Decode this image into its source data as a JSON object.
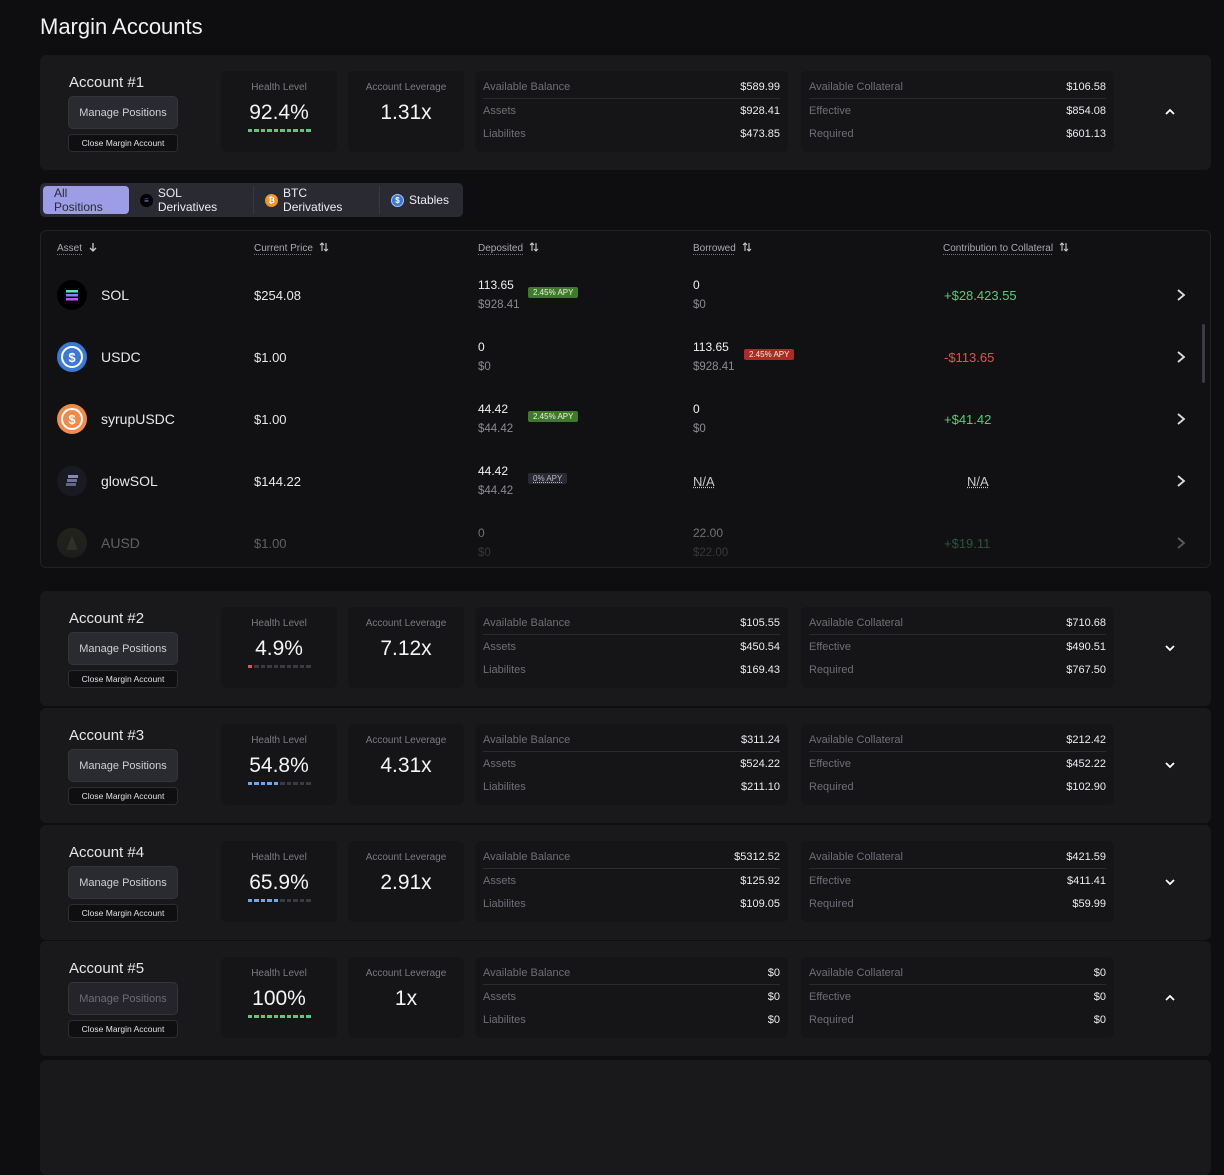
{
  "page_title": "Margin Accounts",
  "labels": {
    "health": "Health Level",
    "leverage": "Account Leverage",
    "available_balance": "Available Balance",
    "assets": "Assets",
    "liabilities": "Liabilites",
    "available_collateral": "Available Collateral",
    "effective": "Effective",
    "required": "Required",
    "manage": "Manage Positions",
    "close": "Close Margin Account"
  },
  "colors": {
    "green": "#5cc87a",
    "red": "#e0544a",
    "blue": "#6aa8e8",
    "accent": "#9d9ce6"
  },
  "accounts": [
    {
      "name": "Account #1",
      "health": "92.4%",
      "health_segments": 10,
      "health_color": "green",
      "leverage": "1.31x",
      "available_balance": "$589.99",
      "assets": "$928.41",
      "liabilities": "$473.85",
      "available_collateral": "$106.58",
      "effective": "$854.08",
      "required": "$601.13",
      "expanded": true,
      "manage_disabled": false
    },
    {
      "name": "Account #2",
      "health": "4.9%",
      "health_segments": 1,
      "health_color": "red",
      "leverage": "7.12x",
      "available_balance": "$105.55",
      "assets": "$450.54",
      "liabilities": "$169.43",
      "available_collateral": "$710.68",
      "effective": "$490.51",
      "required": "$767.50",
      "expanded": false,
      "manage_disabled": false
    },
    {
      "name": "Account #3",
      "health": "54.8%",
      "health_segments": 5,
      "health_color": "blue",
      "leverage": "4.31x",
      "available_balance": "$311.24",
      "assets": "$524.22",
      "liabilities": "$211.10",
      "available_collateral": "$212.42",
      "effective": "$452.22",
      "required": "$102.90",
      "expanded": false,
      "manage_disabled": false
    },
    {
      "name": "Account #4",
      "health": "65.9%",
      "health_segments": 5,
      "health_color": "blue",
      "leverage": "2.91x",
      "available_balance": "$5312.52",
      "assets": "$125.92",
      "liabilities": "$109.05",
      "available_collateral": "$421.59",
      "effective": "$411.41",
      "required": "$59.99",
      "expanded": false,
      "manage_disabled": false
    },
    {
      "name": "Account #5",
      "health": "100%",
      "health_segments": 10,
      "health_color": "green",
      "leverage": "1x",
      "available_balance": "$0",
      "assets": "$0",
      "liabilities": "$0",
      "available_collateral": "$0",
      "effective": "$0",
      "required": "$0",
      "expanded": true,
      "manage_disabled": true
    }
  ],
  "tabs": [
    {
      "label": "All Positions",
      "active": true,
      "icon": ""
    },
    {
      "label": "SOL Derivatives",
      "active": false,
      "icon": "sol-icon"
    },
    {
      "label": "BTC Derivatives",
      "active": false,
      "icon": "btc-icon"
    },
    {
      "label": "Stables",
      "active": false,
      "icon": "usdc-icon"
    }
  ],
  "table": {
    "headers": [
      "Asset",
      "Current Price",
      "Deposited",
      "Borrowed",
      "Contribution to Collateral"
    ],
    "rows": [
      {
        "asset": "SOL",
        "icon": "sol-icon",
        "price": "$254.08",
        "deposited": "113.65",
        "deposited_usd": "$928.41",
        "deposited_apy": "2.45% APY",
        "deposited_apy_type": "green",
        "borrowed": "0",
        "borrowed_usd": "$0",
        "borrowed_apy": "",
        "contribution": "+$28.423.55",
        "contribution_type": "pos"
      },
      {
        "asset": "USDC",
        "icon": "usdc-icon",
        "price": "$1.00",
        "deposited": "0",
        "deposited_usd": "$0",
        "deposited_apy": "",
        "borrowed": "113.65",
        "borrowed_usd": "$928.41",
        "borrowed_apy": "2.45% APY",
        "contribution": "-$113.65",
        "contribution_type": "neg"
      },
      {
        "asset": "syrupUSDC",
        "icon": "syrupusdc-icon",
        "price": "$1.00",
        "deposited": "44.42",
        "deposited_usd": "$44.42",
        "deposited_apy": "2.45% APY",
        "deposited_apy_type": "green",
        "borrowed": "0",
        "borrowed_usd": "$0",
        "borrowed_apy": "",
        "contribution": "+$41.42",
        "contribution_type": "pos"
      },
      {
        "asset": "glowSOL",
        "icon": "glowsol-icon",
        "price": "$144.22",
        "deposited": "44.42",
        "deposited_usd": "$44.42",
        "deposited_apy": "0% APY",
        "deposited_apy_type": "gray",
        "borrowed": "N/A",
        "borrowed_usd": "",
        "borrowed_apy": "",
        "contribution": "N/A",
        "contribution_type": "na"
      },
      {
        "asset": "AUSD",
        "icon": "ausd-icon",
        "price": "$1.00",
        "deposited": "0",
        "deposited_usd": "$0",
        "deposited_apy": "",
        "borrowed": "22.00",
        "borrowed_usd": "$22.00",
        "borrowed_apy": "",
        "contribution": "+$19.11",
        "contribution_type": "pos"
      }
    ]
  }
}
